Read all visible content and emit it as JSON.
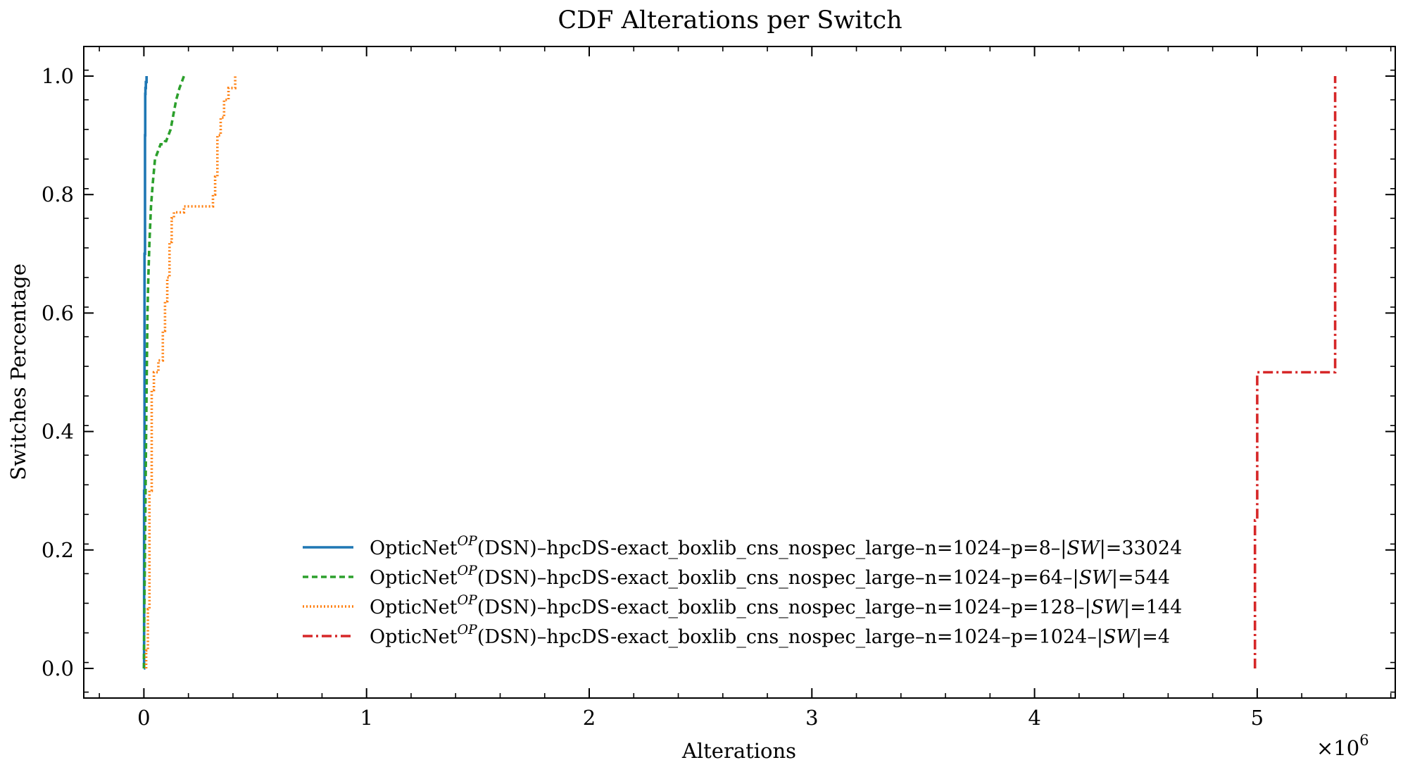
{
  "chart_data": {
    "type": "line",
    "title": "CDF Alterations per Switch",
    "xlabel": "Alterations",
    "ylabel": "Switches Percentage",
    "x_multiplier_label": "×10",
    "x_multiplier_exp": "6",
    "xlim": [
      -270000,
      5620000
    ],
    "ylim": [
      -0.05,
      1.05
    ],
    "xticks": [
      0,
      1000000,
      2000000,
      3000000,
      4000000,
      5000000
    ],
    "xtick_labels": [
      "0",
      "1",
      "2",
      "3",
      "4",
      "5"
    ],
    "yticks": [
      0.0,
      0.2,
      0.4,
      0.6,
      0.8,
      1.0
    ],
    "ytick_labels": [
      "0.0",
      "0.2",
      "0.4",
      "0.6",
      "0.8",
      "1.0"
    ],
    "grid": false,
    "legend_position": "lower-center",
    "series": [
      {
        "name_main": "OpticNet",
        "name_sup": "OP",
        "name_mid": "(DSN)–hpcDS-exact_boxlib_cns_nospec_large–n=1024–p=8–|",
        "name_sw": "SW",
        "name_tail": "|=33024",
        "color": "#1f77b4",
        "dash": "solid",
        "x": [
          0,
          1000,
          1000,
          3000,
          3000,
          5000,
          5000,
          6000,
          6000,
          7000,
          7000,
          9000,
          9000,
          12000,
          12000
        ],
        "y": [
          0,
          0,
          0.3,
          0.3,
          0.7,
          0.7,
          0.9,
          0.9,
          0.97,
          0.97,
          0.98,
          0.98,
          0.99,
          0.99,
          1.0
        ]
      },
      {
        "name_main": "OpticNet",
        "name_sup": "OP",
        "name_mid": "(DSN)–hpcDS-exact_boxlib_cns_nospec_large–n=1024–p=64–|",
        "name_sw": "SW",
        "name_tail": "|=544",
        "color": "#2ca02c",
        "dash": "8,5",
        "x": [
          0,
          2000,
          5000,
          8000,
          10000,
          13000,
          16000,
          20000,
          25000,
          32000,
          40000,
          50000,
          65000,
          75000,
          90000,
          95000,
          100000,
          120000,
          130000,
          145000,
          160000,
          170000,
          180000
        ],
        "y": [
          0,
          0.1,
          0.2,
          0.32,
          0.4,
          0.5,
          0.6,
          0.66,
          0.72,
          0.78,
          0.82,
          0.86,
          0.875,
          0.885,
          0.885,
          0.89,
          0.89,
          0.91,
          0.93,
          0.96,
          0.98,
          0.99,
          1.0
        ]
      },
      {
        "name_main": "OpticNet",
        "name_sup": "OP",
        "name_mid": "(DSN)–hpcDS-exact_boxlib_cns_nospec_large–n=1024–p=128–|",
        "name_sw": "SW",
        "name_tail": "|=144",
        "color": "#ff7f0e",
        "dash": "2,3",
        "x": [
          10000,
          10000,
          18000,
          18000,
          25000,
          25000,
          35000,
          35000,
          45000,
          45000,
          65000,
          65000,
          85000,
          85000,
          95000,
          95000,
          105000,
          105000,
          115000,
          115000,
          125000,
          125000,
          135000,
          135000,
          180000,
          180000,
          310000,
          310000,
          320000,
          320000,
          330000,
          330000,
          345000,
          345000,
          360000,
          360000,
          380000,
          380000,
          410000,
          410000
        ],
        "y": [
          0,
          0.03,
          0.03,
          0.1,
          0.1,
          0.3,
          0.3,
          0.47,
          0.47,
          0.5,
          0.5,
          0.52,
          0.52,
          0.57,
          0.57,
          0.62,
          0.62,
          0.66,
          0.66,
          0.72,
          0.72,
          0.76,
          0.76,
          0.77,
          0.77,
          0.78,
          0.78,
          0.8,
          0.8,
          0.83,
          0.83,
          0.9,
          0.9,
          0.93,
          0.93,
          0.96,
          0.96,
          0.98,
          0.98,
          1.0
        ]
      },
      {
        "name_main": "OpticNet",
        "name_sup": "OP",
        "name_mid": "(DSN)–hpcDS-exact_boxlib_cns_nospec_large–n=1024–p=1024–|",
        "name_sw": "SW",
        "name_tail": "|=4",
        "color": "#d62728",
        "dash": "14,5,3,5",
        "x": [
          4990000,
          4990000,
          5000000,
          5000000,
          5350000,
          5350000
        ],
        "y": [
          0,
          0.25,
          0.25,
          0.5,
          0.5,
          1.0
        ]
      }
    ]
  }
}
